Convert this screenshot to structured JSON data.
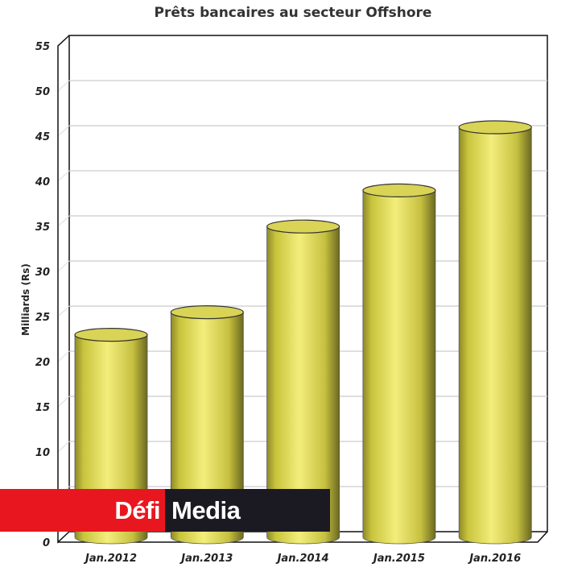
{
  "chart_data": {
    "type": "bar",
    "title": "Prêts bancaires au secteur Offshore",
    "xlabel": "",
    "ylabel": "Milliards (Rs)",
    "categories": [
      "Jan.2012",
      "Jan.2013",
      "Jan.2014",
      "Jan.2015",
      "Jan.2016"
    ],
    "values": [
      22,
      24.5,
      34,
      38,
      45
    ],
    "ylim": [
      0,
      55
    ],
    "yticks": [
      0,
      5,
      10,
      15,
      20,
      25,
      30,
      35,
      40,
      45,
      50,
      55
    ],
    "grid": true,
    "style": "3d-cylinder",
    "bar_color": "#e6e05a"
  },
  "watermark": {
    "part1": "Défi",
    "part2": "Media",
    "color1": "#e8171f",
    "color2": "#1b1a22"
  }
}
